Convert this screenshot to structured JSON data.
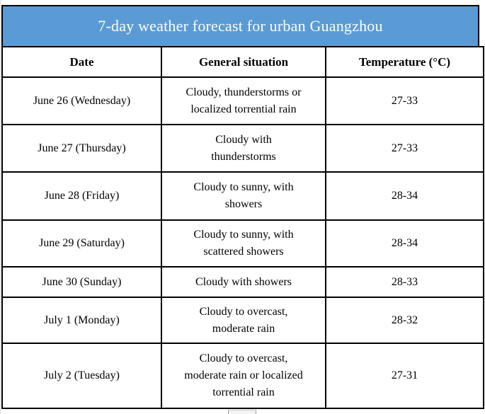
{
  "banner": {
    "title": "7-day weather forecast for urban Guangzhou",
    "bg_color": "#5b9bd5",
    "text_color": "#fdfdfd"
  },
  "table": {
    "headers": [
      "Date",
      "General situation",
      "Temperature (°C)"
    ],
    "rows": [
      {
        "date": "June 26 (Wednesday)",
        "situation": "Cloudy, thunderstorms or\nlocalized torrential rain",
        "temperature": "27-33"
      },
      {
        "date": "June 27 (Thursday)",
        "situation": "Cloudy with\nthunderstorms",
        "temperature": "27-33"
      },
      {
        "date": "June 28 (Friday)",
        "situation": "Cloudy to sunny, with\nshowers",
        "temperature": "28-34"
      },
      {
        "date": "June 29 (Saturday)",
        "situation": "Cloudy to sunny, with\nscattered showers",
        "temperature": "28-34"
      },
      {
        "date": "June 30 (Sunday)",
        "situation": "Cloudy with showers",
        "temperature": "28-33"
      },
      {
        "date": "July 1 (Monday)",
        "situation": "Cloudy to overcast,\nmoderate rain",
        "temperature": "28-32"
      },
      {
        "date": "July 2 (Tuesday)",
        "situation": "Cloudy to overcast,\nmoderate rain or localized\ntorrential rain",
        "temperature": "27-31"
      }
    ]
  },
  "colors": {
    "banner_bg": "#5b9bd5",
    "table_border": "#000000",
    "body_text": "#000000"
  }
}
